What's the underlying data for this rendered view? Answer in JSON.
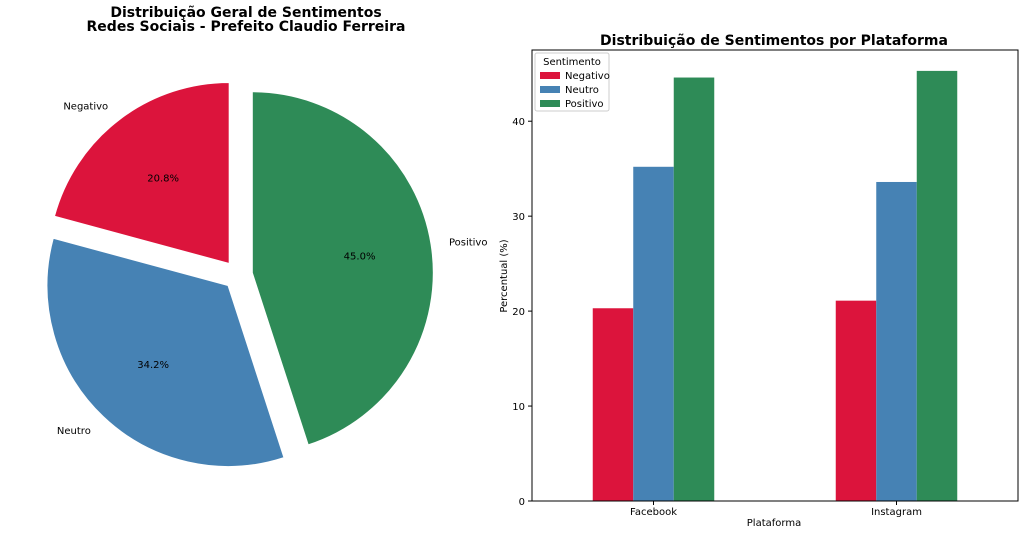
{
  "chart_data": [
    {
      "type": "pie",
      "title": "Distribuição Geral de Sentimentos",
      "subtitle": "Redes Sociais - Prefeito Claudio Ferreira",
      "slices": [
        {
          "label": "Negativo",
          "value": 20.8,
          "pct_label": "20.8%",
          "color": "#dc143c"
        },
        {
          "label": "Neutro",
          "value": 34.2,
          "pct_label": "34.2%",
          "color": "#4682b4"
        },
        {
          "label": "Positivo",
          "value": 45.0,
          "pct_label": "45.0%",
          "color": "#2e8b57"
        }
      ],
      "exploded": true
    },
    {
      "type": "bar",
      "title": "Distribuição de Sentimentos por Plataforma",
      "xlabel": "Plataforma",
      "ylabel": "Percentual (%)",
      "categories": [
        "Facebook",
        "Instagram"
      ],
      "series": [
        {
          "name": "Negativo",
          "color": "#dc143c",
          "values": [
            20.3,
            21.1
          ]
        },
        {
          "name": "Neutro",
          "color": "#4682b4",
          "values": [
            35.2,
            33.6
          ]
        },
        {
          "name": "Positivo",
          "color": "#2e8b57",
          "values": [
            44.6,
            45.3
          ]
        }
      ],
      "ylim": [
        0,
        47.5
      ],
      "yticks": [
        "0",
        "10",
        "20",
        "30",
        "40"
      ],
      "legend": {
        "title": "Sentimento",
        "placement": "top-left"
      },
      "grid": false
    }
  ]
}
